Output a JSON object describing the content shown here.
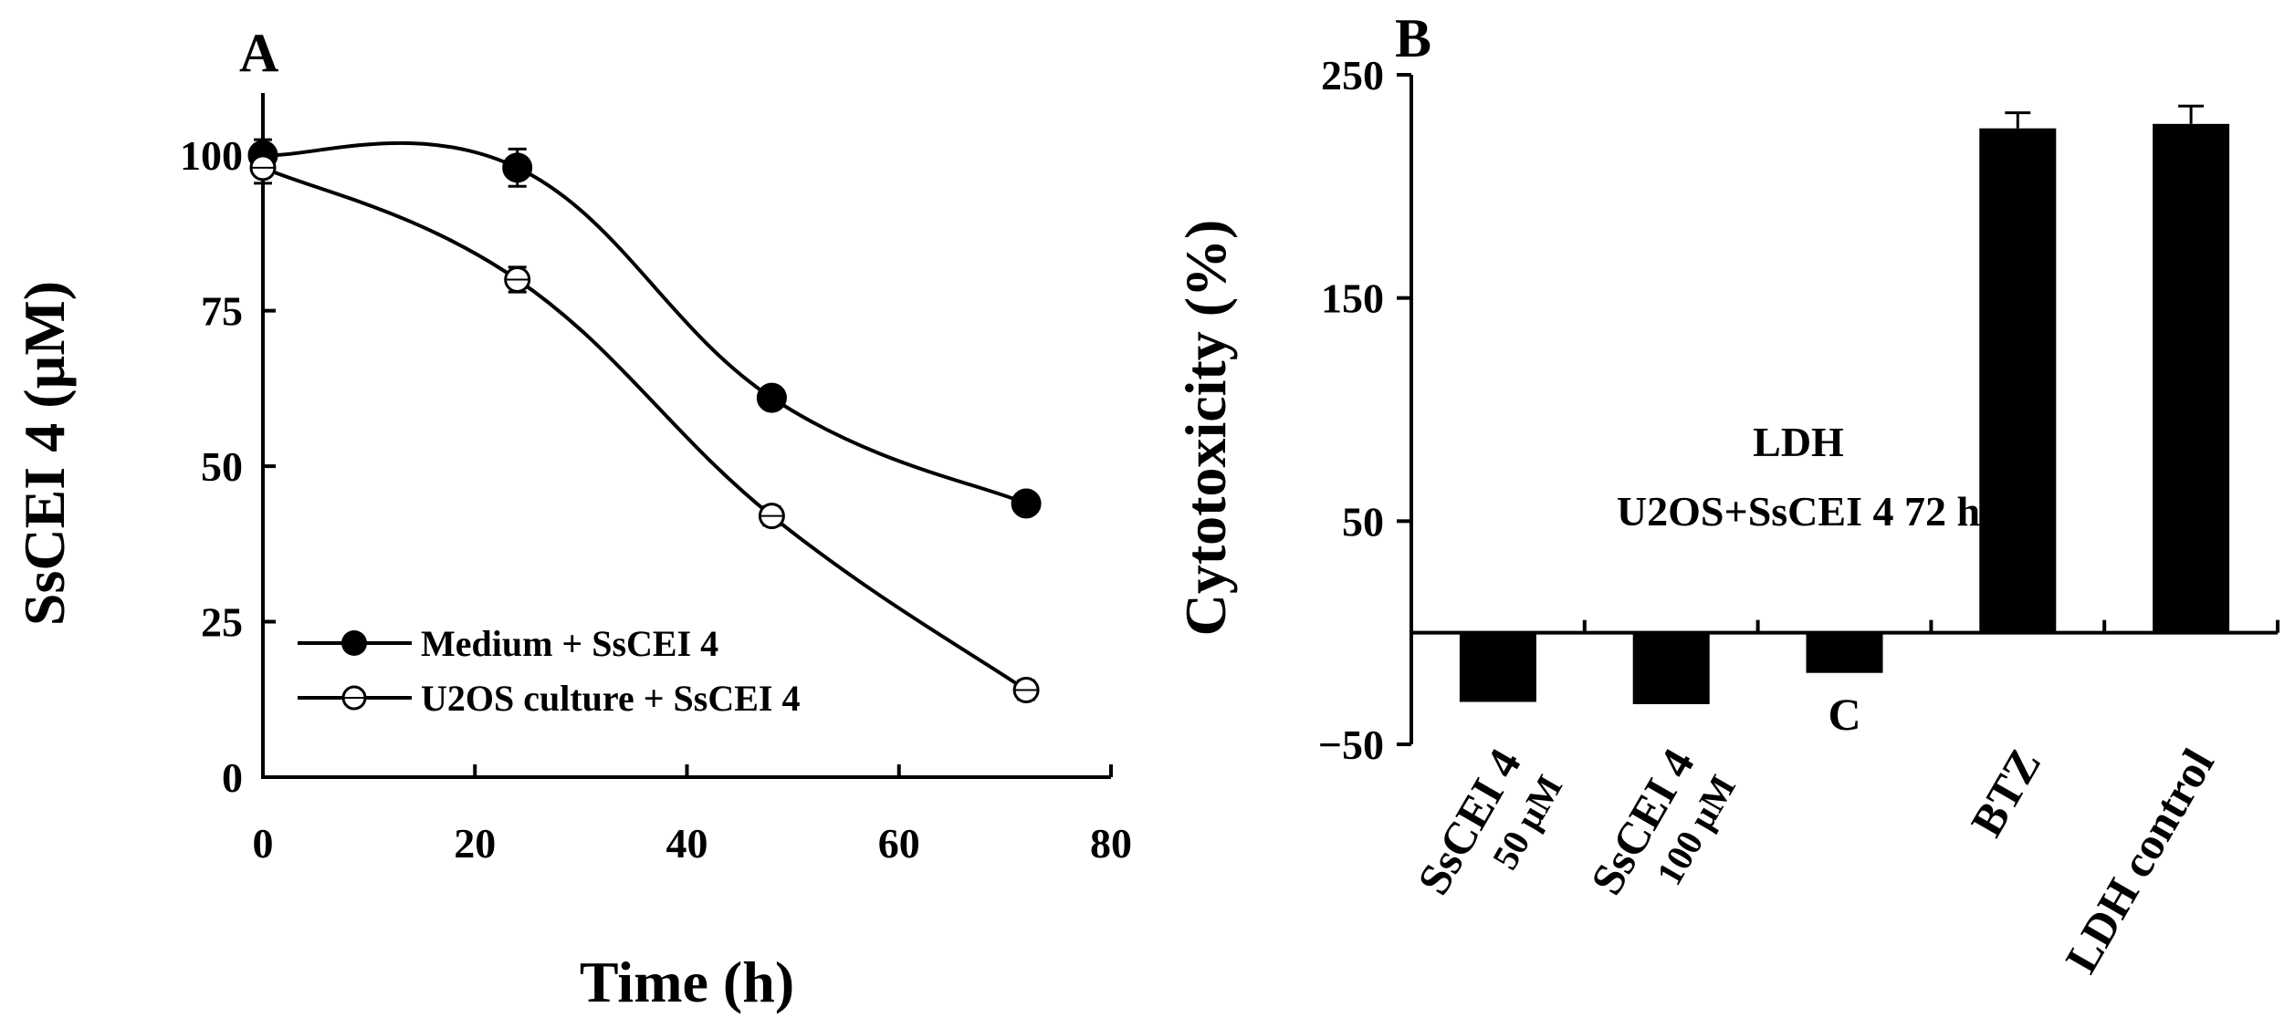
{
  "chart_data": [
    {
      "panel": "A",
      "type": "line",
      "xlabel": "Time (h)",
      "ylabel": "SsCEI 4 (µM)",
      "xlim": [
        0,
        80
      ],
      "ylim": [
        0,
        110
      ],
      "xticks": [
        0,
        20,
        40,
        60,
        80
      ],
      "yticks": [
        0,
        25,
        50,
        75,
        100
      ],
      "grid": false,
      "legend_position": "bottom-left",
      "x": [
        0,
        24,
        48,
        72
      ],
      "series": [
        {
          "name": "Medium + SsCEI 4",
          "marker": "filled-circle",
          "values": [
            100,
            98,
            61,
            44
          ],
          "errors": [
            2.5,
            3,
            1.5,
            1.5
          ]
        },
        {
          "name": "U2OS culture + SsCEI 4",
          "marker": "open-circle",
          "values": [
            98,
            80,
            42,
            14
          ],
          "errors": [
            2.5,
            2,
            1.5,
            1.5
          ]
        }
      ]
    },
    {
      "panel": "B",
      "type": "bar",
      "ylabel": "Cytotoxicity (%)",
      "ylim": [
        -50,
        250
      ],
      "yticks": [
        -50,
        50,
        150,
        250
      ],
      "ytick_labels": [
        "−50",
        "50",
        "150",
        "250"
      ],
      "grid": false,
      "annotation": [
        "LDH",
        "U2OS+SsCEI 4 72 h"
      ],
      "categories": [
        {
          "lines": [
            "SsCEI 4",
            "50 µM"
          ]
        },
        {
          "lines": [
            "SsCEI 4",
            "100 µM"
          ]
        },
        {
          "lines": [
            "C"
          ]
        },
        {
          "lines": [
            "BTZ"
          ]
        },
        {
          "lines": [
            "LDH control"
          ]
        }
      ],
      "values": [
        -31,
        -32,
        -18,
        226,
        228
      ],
      "errors": [
        0,
        0,
        0,
        7,
        8
      ]
    }
  ]
}
